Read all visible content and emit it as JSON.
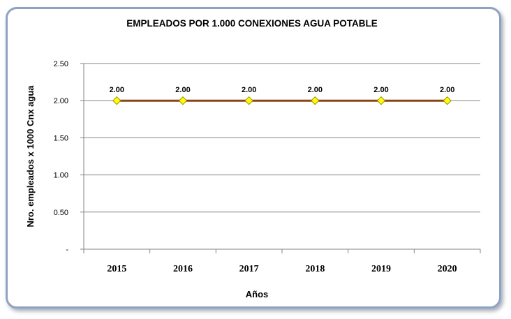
{
  "chart_data": {
    "type": "line",
    "title": "EMPLEADOS POR 1.000 CONEXIONES AGUA POTABLE",
    "xlabel": "Años",
    "ylabel": "Nro. empleados x 1000 Cnx agua",
    "categories": [
      "2015",
      "2016",
      "2017",
      "2018",
      "2019",
      "2020"
    ],
    "series": [
      {
        "values": [
          2.0,
          2.0,
          2.0,
          2.0,
          2.0,
          2.0
        ],
        "color": "#8b4513",
        "marker_color": "#ffff00"
      }
    ],
    "data_labels": [
      "2.00",
      "2.00",
      "2.00",
      "2.00",
      "2.00",
      "2.00"
    ],
    "ylim": [
      0,
      2.5
    ],
    "yticks": [
      0,
      0.5,
      1.0,
      1.5,
      2.0,
      2.5
    ],
    "ytick_labels": [
      "-",
      "0.50",
      "1.00",
      "1.50",
      "2.00",
      "2.50"
    ],
    "grid": true,
    "legend": "none"
  }
}
